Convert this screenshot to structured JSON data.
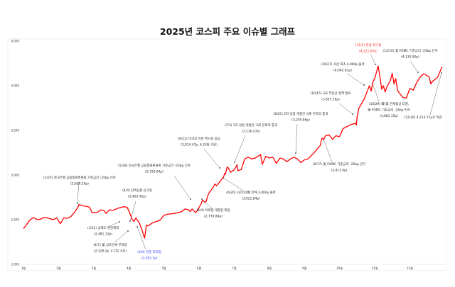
{
  "chart_data": {
    "type": "line",
    "title": "2025년  코스피 주요 이슈별 그래프",
    "xlabel": "",
    "ylabel": "",
    "x_tick_labels": [
      "1월",
      "2월",
      "3월",
      "4월",
      "5월",
      "6월",
      "7월",
      "8월",
      "9월",
      "10월",
      "11월",
      "12월"
    ],
    "xlim": [
      0,
      12
    ],
    "y_tick_labels": [
      "2,000",
      "2,500",
      "3,000",
      "3,500",
      "4,000",
      "4,500"
    ],
    "y_ticks": [
      2000,
      2500,
      3000,
      3500,
      4000,
      4500
    ],
    "ylim": [
      2000,
      4500
    ],
    "grid": false,
    "line_color": "#ff0000",
    "series": [
      {
        "name": "KOSPI",
        "points": [
          [
            0,
            2399
          ],
          [
            0.08,
            2440
          ],
          [
            0.15,
            2480
          ],
          [
            0.2,
            2500
          ],
          [
            0.28,
            2525
          ],
          [
            0.4,
            2500
          ],
          [
            0.48,
            2505
          ],
          [
            0.55,
            2520
          ],
          [
            0.6,
            2525
          ],
          [
            0.7,
            2518
          ],
          [
            0.85,
            2500
          ],
          [
            0.95,
            2520
          ],
          [
            1.05,
            2455
          ],
          [
            1.15,
            2520
          ],
          [
            1.25,
            2515
          ],
          [
            1.35,
            2535
          ],
          [
            1.45,
            2580
          ],
          [
            1.55,
            2640
          ],
          [
            1.58,
            2670
          ],
          [
            1.7,
            2655
          ],
          [
            1.8,
            2650
          ],
          [
            1.88,
            2640
          ],
          [
            1.95,
            2580
          ],
          [
            2.1,
            2580
          ],
          [
            2.2,
            2610
          ],
          [
            2.3,
            2600
          ],
          [
            2.35,
            2570
          ],
          [
            2.45,
            2610
          ],
          [
            2.55,
            2605
          ],
          [
            2.7,
            2630
          ],
          [
            2.85,
            2645
          ],
          [
            2.95,
            2640
          ],
          [
            3.0,
            2600
          ],
          [
            3.05,
            2550
          ],
          [
            3.1,
            2500
          ],
          [
            3.15,
            2481
          ],
          [
            3.2,
            2520
          ],
          [
            3.25,
            2490
          ],
          [
            3.3,
            2465
          ],
          [
            3.33,
            2430
          ],
          [
            3.38,
            2380
          ],
          [
            3.42,
            2328
          ],
          [
            3.45,
            2294
          ],
          [
            3.5,
            2440
          ],
          [
            3.55,
            2430
          ],
          [
            3.6,
            2445
          ],
          [
            3.7,
            2470
          ],
          [
            3.8,
            2480
          ],
          [
            3.9,
            2500
          ],
          [
            4.0,
            2550
          ],
          [
            4.1,
            2560
          ],
          [
            4.3,
            2570
          ],
          [
            4.5,
            2590
          ],
          [
            4.6,
            2620
          ],
          [
            4.7,
            2610
          ],
          [
            4.75,
            2590
          ],
          [
            4.8,
            2620
          ],
          [
            4.85,
            2600
          ],
          [
            4.9,
            2580
          ],
          [
            4.95,
            2600
          ],
          [
            5.0,
            2640
          ],
          [
            5.05,
            2670
          ],
          [
            5.1,
            2720
          ],
          [
            5.15,
            2700
          ],
          [
            5.2,
            2700
          ],
          [
            5.25,
            2770
          ],
          [
            5.3,
            2810
          ],
          [
            5.4,
            2860
          ],
          [
            5.45,
            2900
          ],
          [
            5.5,
            2880
          ],
          [
            5.6,
            2930
          ],
          [
            5.7,
            2980
          ],
          [
            5.73,
            3020
          ],
          [
            5.75,
            3010
          ],
          [
            5.8,
            3090
          ],
          [
            5.83,
            3080
          ],
          [
            5.9,
            3030
          ],
          [
            6.0,
            3060
          ],
          [
            6.05,
            3090
          ],
          [
            6.08,
            3116
          ],
          [
            6.1,
            3050
          ],
          [
            6.2,
            3060
          ],
          [
            6.3,
            3180
          ],
          [
            6.4,
            3200
          ],
          [
            6.5,
            3180
          ],
          [
            6.6,
            3190
          ],
          [
            6.75,
            3230
          ],
          [
            6.8,
            3120
          ],
          [
            6.9,
            3210
          ],
          [
            7.0,
            3190
          ],
          [
            7.1,
            3200
          ],
          [
            7.2,
            3130
          ],
          [
            7.3,
            3190
          ],
          [
            7.4,
            3180
          ],
          [
            7.5,
            3150
          ],
          [
            7.6,
            3180
          ],
          [
            7.7,
            3200
          ],
          [
            7.8,
            3180
          ],
          [
            7.9,
            3140
          ],
          [
            8.0,
            3170
          ],
          [
            8.1,
            3180
          ],
          [
            8.2,
            3220
          ],
          [
            8.3,
            3260
          ],
          [
            8.4,
            3310
          ],
          [
            8.45,
            3330
          ],
          [
            8.5,
            3413
          ],
          [
            8.55,
            3400
          ],
          [
            8.6,
            3440
          ],
          [
            8.7,
            3450
          ],
          [
            8.8,
            3400
          ],
          [
            8.9,
            3440
          ],
          [
            9.0,
            3430
          ],
          [
            9.1,
            3520
          ],
          [
            9.3,
            3560
          ],
          [
            9.45,
            3580
          ],
          [
            9.48,
            3560
          ],
          [
            9.5,
            3657
          ],
          [
            9.55,
            3750
          ],
          [
            9.6,
            3780
          ],
          [
            9.7,
            3850
          ],
          [
            9.8,
            3950
          ],
          [
            9.85,
            4000
          ],
          [
            9.9,
            3940
          ],
          [
            9.95,
            4042
          ],
          [
            10.0,
            4080
          ],
          [
            10.05,
            4150
          ],
          [
            10.1,
            4221
          ],
          [
            10.15,
            4100
          ],
          [
            10.2,
            3960
          ],
          [
            10.25,
            4000
          ],
          [
            10.3,
            3930
          ],
          [
            10.35,
            3990
          ],
          [
            10.45,
            4060
          ],
          [
            10.5,
            4140
          ],
          [
            10.55,
            4020
          ],
          [
            10.6,
            4080
          ],
          [
            10.65,
            3950
          ],
          [
            10.7,
            3920
          ],
          [
            10.8,
            3870
          ],
          [
            10.9,
            3860
          ],
          [
            11.0,
            3970
          ],
          [
            11.1,
            3950
          ],
          [
            11.2,
            4040
          ],
          [
            11.3,
            4100
          ],
          [
            11.4,
            4135
          ],
          [
            11.5,
            4110
          ],
          [
            11.55,
            4100
          ],
          [
            11.6,
            4020
          ],
          [
            11.65,
            4050
          ],
          [
            11.75,
            4080
          ],
          [
            11.8,
            4100
          ],
          [
            11.85,
            4150
          ],
          [
            11.92,
            4214
          ]
        ]
      }
    ],
    "annotations": [
      {
        "lines": [
          "(2/25) 한국은행 금융통화위원회 기준금리 -25bp 인하",
          "(2,630.29p)"
        ],
        "color": "default"
      },
      {
        "lines": [
          "(4/4) 탄핵심판 선고일",
          "(2,465.42p)"
        ],
        "color": "default"
      },
      {
        "lines": [
          "(3/31) 공매도 전면재개",
          "(2,481.12p)"
        ],
        "color": "default"
      },
      {
        "lines": [
          "(4/7) 美 상호관세 부과일",
          "(2,328.2p, 4.7일 기준)"
        ],
        "color": "default"
      },
      {
        "lines": [
          "(4/9) 연중 최저점",
          "(2,293.7p)"
        ],
        "color": "blue"
      },
      {
        "lines": [
          "(5/29) 한국은행 금융통화위원회 기준금리 -25bp 인하",
          "(2,720.64p)"
        ],
        "color": "default"
      },
      {
        "lines": [
          "(6/4) 이재명 대통령 취임",
          "(2,770.84p)"
        ],
        "color": "default"
      },
      {
        "lines": [
          "(6/22) 미국의 이란 핵시설 공습",
          "(3,014.47p, 6.23일 기준)"
        ],
        "color": "default"
      },
      {
        "lines": [
          "(6/20) 3년 6개월 만에 3,000p 돌파",
          "(3,021.84p)"
        ],
        "color": "default"
      },
      {
        "lines": [
          "(7/3) 1차 상법 개정안 국회 본회의 통과",
          "(3,116.27p)"
        ],
        "color": "default"
      },
      {
        "lines": [
          "(8/25) 2차 상법 개정안 국회 본회의 통과",
          "(3,209.86p)"
        ],
        "color": "default"
      },
      {
        "lines": [
          "(9/17) 美 FOMC 기준금리 -25bp 인하",
          "(3,413.4p)"
        ],
        "color": "default"
      },
      {
        "lines": [
          "(10/15) 3차 부동산 정책 발표",
          "(3,657.28p)"
        ],
        "color": "default"
      },
      {
        "lines": [
          "(10/27) 사상 최초 4,000p 돌파",
          "(4,042.83p)"
        ],
        "color": "default"
      },
      {
        "lines": [
          "(11/3) 연중 최고점",
          "(4,221.87p)"
        ],
        "color": "red"
      },
      {
        "lines": [
          "(10/29) 韓-美 관세협상 타결,",
          "美 FOMC 기준금리 -25bp 인하",
          "(4,081.15p)"
        ],
        "color": "default"
      },
      {
        "lines": [
          "(12/10) 美 FOMC 기준금리 -25bp 인하",
          "(4,135.90p)"
        ],
        "color": "default"
      },
      {
        "lines": [
          "(12/30) 4,214.17p로 마감"
        ],
        "color": "default"
      }
    ]
  }
}
